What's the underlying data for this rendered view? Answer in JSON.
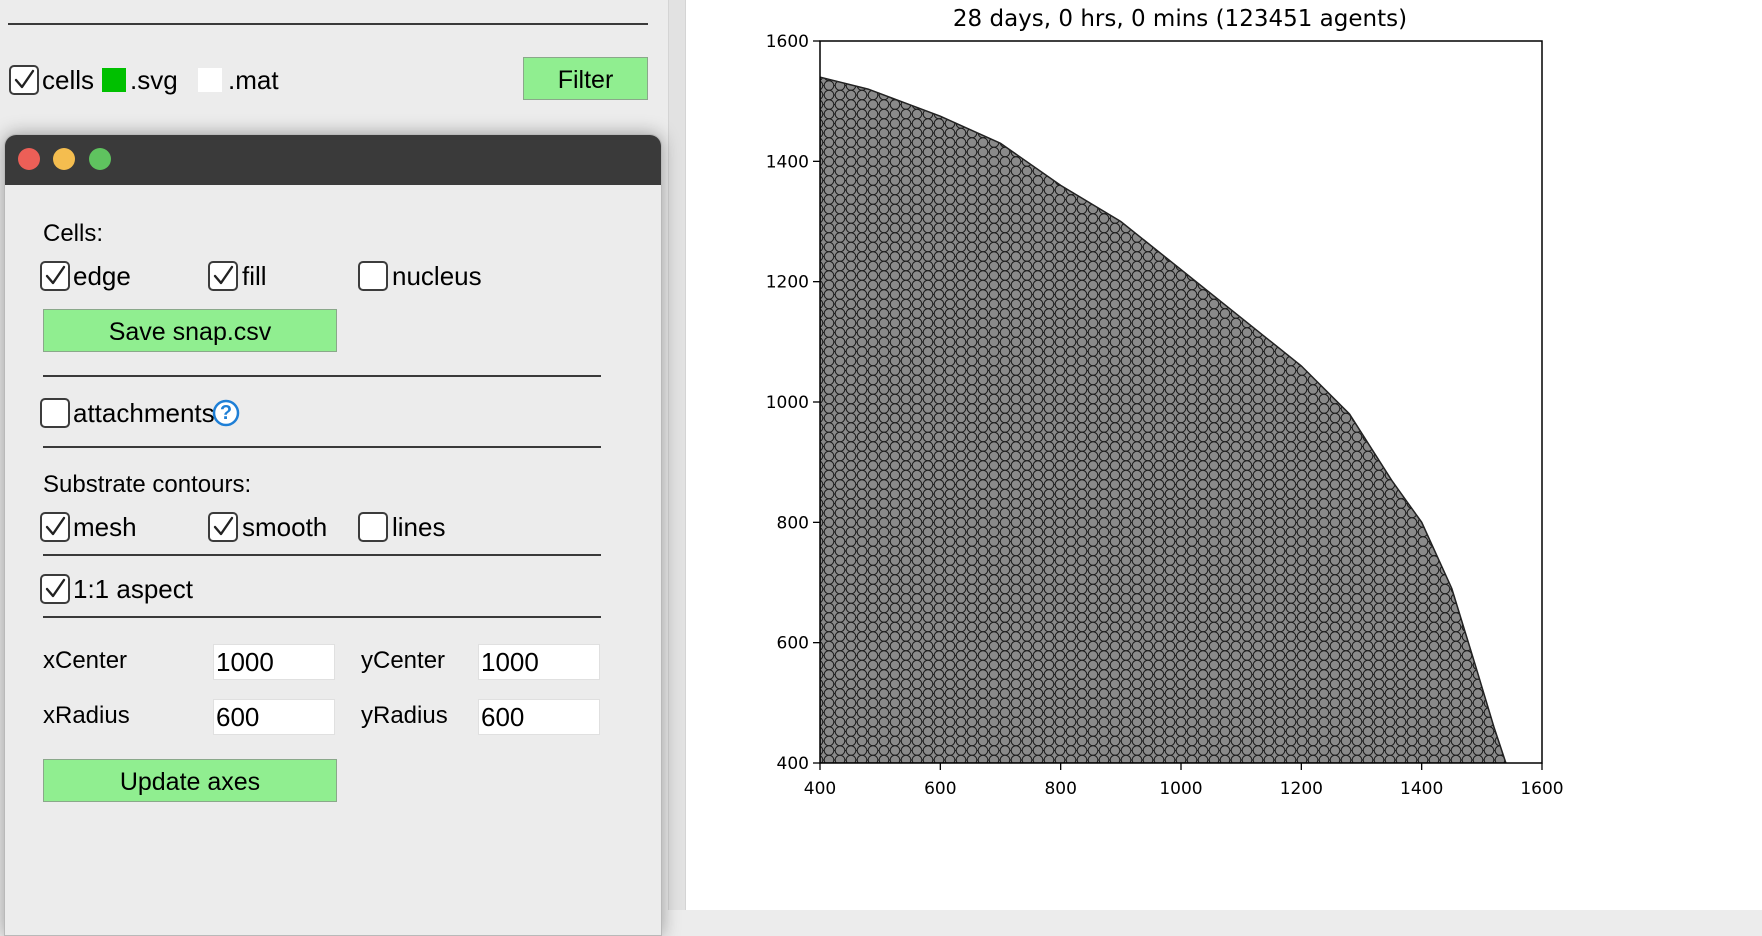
{
  "top_bar": {
    "cells_checked": true,
    "cells_label": "cells",
    "svg_label": ".svg",
    "svg_color": "#00c000",
    "mat_label": ".mat",
    "mat_color": "#ffffff",
    "filter_label": "Filter"
  },
  "dialog": {
    "cells_heading": "Cells:",
    "cells_options": [
      {
        "label": "edge",
        "checked": true
      },
      {
        "label": "fill",
        "checked": true
      },
      {
        "label": "nucleus",
        "checked": false
      }
    ],
    "save_label": "Save snap.csv",
    "attachments_label": "attachments",
    "attachments_checked": false,
    "help_glyph": "?",
    "substrate_heading": "Substrate contours:",
    "substrate_options": [
      {
        "label": "mesh",
        "checked": true
      },
      {
        "label": "smooth",
        "checked": true
      },
      {
        "label": "lines",
        "checked": false
      }
    ],
    "aspect_label": "1:1 aspect",
    "aspect_checked": true,
    "xcenter_label": "xCenter",
    "xcenter_value": "1000",
    "ycenter_label": "yCenter",
    "ycenter_value": "1000",
    "xradius_label": "xRadius",
    "xradius_value": "600",
    "yradius_label": "yRadius",
    "yradius_value": "600",
    "update_label": "Update axes",
    "button_color": "#90ee90"
  },
  "chart_data": {
    "type": "scatter",
    "title": "28 days, 0 hrs, 0 mins (123451 agents)",
    "xlabel": "",
    "ylabel": "",
    "xlim": [
      400,
      1600
    ],
    "ylim": [
      400,
      1600
    ],
    "xticks": [
      400,
      600,
      800,
      1000,
      1200,
      1400,
      1600
    ],
    "yticks": [
      400,
      600,
      800,
      1000,
      1200,
      1400,
      1600
    ],
    "grid": false,
    "agent_fill": "#808080",
    "agent_edge": "#000000",
    "colony_boundary": [
      {
        "x": 400,
        "y": 1540
      },
      {
        "x": 480,
        "y": 1520
      },
      {
        "x": 600,
        "y": 1475
      },
      {
        "x": 700,
        "y": 1430
      },
      {
        "x": 800,
        "y": 1360
      },
      {
        "x": 900,
        "y": 1300
      },
      {
        "x": 1000,
        "y": 1220
      },
      {
        "x": 1100,
        "y": 1140
      },
      {
        "x": 1200,
        "y": 1060
      },
      {
        "x": 1280,
        "y": 980
      },
      {
        "x": 1350,
        "y": 870
      },
      {
        "x": 1400,
        "y": 800
      },
      {
        "x": 1450,
        "y": 690
      },
      {
        "x": 1490,
        "y": 560
      },
      {
        "x": 1520,
        "y": 460
      },
      {
        "x": 1540,
        "y": 400
      }
    ]
  }
}
